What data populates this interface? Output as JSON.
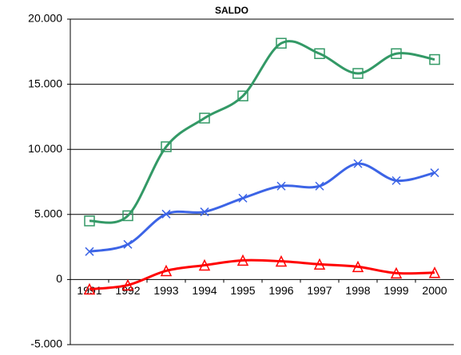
{
  "chart_data": {
    "type": "line",
    "title": "SALDO",
    "categories": [
      "1991",
      "1992",
      "1993",
      "1994",
      "1995",
      "1996",
      "1997",
      "1998",
      "1999",
      "2000"
    ],
    "series": [
      {
        "color": "#339966",
        "marker": "square",
        "values": [
          4500,
          4900,
          10200,
          12400,
          14100,
          18150,
          17350,
          15830,
          17350,
          16900
        ]
      },
      {
        "color": "#3c64e6",
        "marker": "x",
        "values": [
          2150,
          2700,
          5030,
          5200,
          6250,
          7180,
          7180,
          8900,
          7600,
          8200
        ]
      },
      {
        "color": "#ff0000",
        "marker": "triangle",
        "values": [
          -740,
          -430,
          670,
          1100,
          1470,
          1400,
          1170,
          980,
          490,
          530
        ]
      }
    ],
    "ylim": [
      -5000,
      20000
    ],
    "yticks": [
      {
        "value": -5000,
        "label": "-5.000"
      },
      0,
      {
        "value": 5000,
        "label": "5.000"
      },
      {
        "value": 10000,
        "label": "10.000"
      },
      {
        "value": 15000,
        "label": "15.000"
      },
      {
        "value": 20000,
        "label": "20.000"
      }
    ],
    "grid": true,
    "smooth": true
  }
}
